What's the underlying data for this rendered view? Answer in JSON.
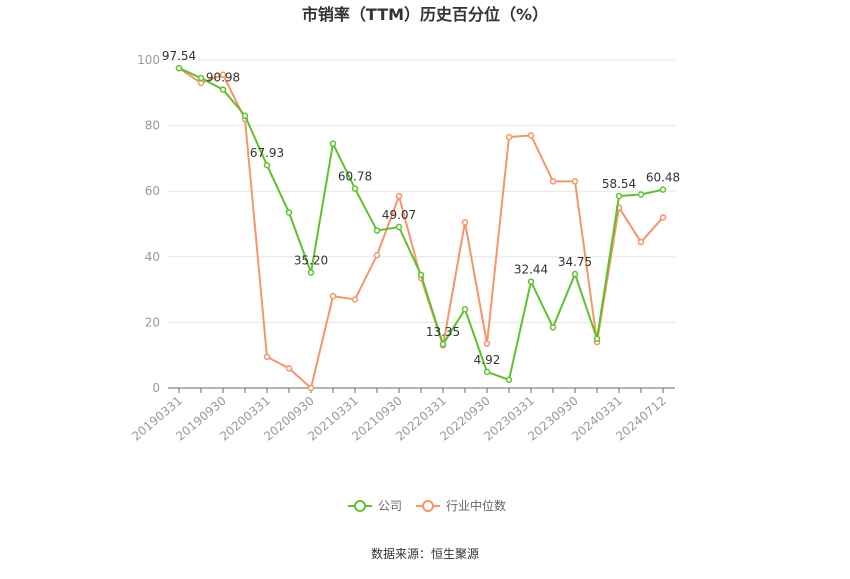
{
  "chart_data": {
    "type": "line",
    "title": "市销率（TTM）历史百分位（%）",
    "categories": [
      "20190331",
      null,
      "20190930",
      null,
      "20200331",
      null,
      "20200930",
      null,
      "20210331",
      null,
      "20210930",
      null,
      "20220331",
      null,
      "20220930",
      null,
      "20230331",
      null,
      "20230930",
      null,
      "20240331",
      null,
      "20240712"
    ],
    "series": [
      {
        "name": "公司",
        "color": "#5ec12f",
        "values": [
          97.54,
          94.5,
          90.98,
          83,
          67.93,
          53.5,
          35.2,
          74.5,
          60.78,
          48,
          49.07,
          34.5,
          13.35,
          24,
          4.92,
          2.5,
          32.44,
          18.5,
          34.75,
          15,
          58.54,
          59,
          60.48
        ],
        "value_labels": [
          "97.54",
          null,
          "90.98",
          null,
          "67.93",
          null,
          "35.20",
          null,
          "60.78",
          null,
          "49.07",
          null,
          "13.35",
          null,
          "4.92",
          null,
          "32.44",
          null,
          "34.75",
          null,
          "58.54",
          null,
          "60.48"
        ]
      },
      {
        "name": "行业中位数",
        "color": "#f4956a",
        "values": [
          97.5,
          93,
          95.5,
          82,
          9.5,
          6,
          0,
          28,
          27,
          40.5,
          58.5,
          33.5,
          13,
          50.5,
          13.5,
          76.5,
          77,
          63,
          63,
          14,
          55,
          44.5,
          52
        ]
      }
    ],
    "ylim": [
      0,
      100
    ],
    "yticks": [
      0,
      20,
      40,
      60,
      80,
      100
    ],
    "grid": true,
    "legend": "bottom",
    "source": "数据来源：恒生聚源"
  }
}
